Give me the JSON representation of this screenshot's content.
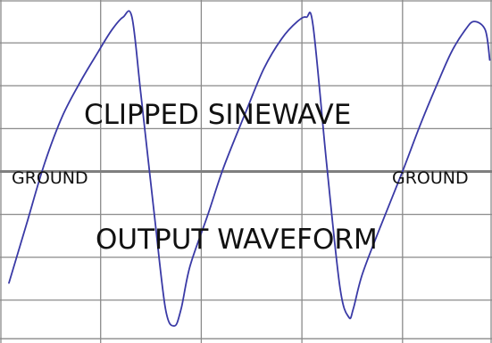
{
  "chart_data": {
    "type": "line",
    "grid": true,
    "xlim": [
      0,
      11
    ],
    "ylim": [
      -4,
      4
    ],
    "x_gridlines": [
      0,
      2.25,
      4.5,
      6.75,
      9,
      11
    ],
    "y_gridlines": [
      -3.9,
      -3,
      -2,
      -1,
      0,
      1,
      2,
      3,
      4
    ],
    "series": [
      {
        "color": "#3a3aa6",
        "x": [
          0.2,
          0.6,
          1.0,
          1.4,
          1.8,
          2.2,
          2.5,
          2.75,
          2.95,
          3.15,
          3.45,
          3.7,
          3.9,
          4.05,
          4.25,
          4.65,
          5.0,
          5.5,
          5.9,
          6.3,
          6.65,
          6.85,
          7.0,
          7.3,
          7.6,
          7.8,
          7.9,
          8.1,
          8.5,
          9.0,
          9.4,
          9.8,
          10.1,
          10.4,
          10.6,
          10.85,
          10.95
        ],
        "y": [
          -2.6,
          -1.2,
          0.2,
          1.3,
          2.1,
          2.8,
          3.3,
          3.6,
          3.6,
          1.8,
          -1.0,
          -3.2,
          -3.6,
          -3.2,
          -2.2,
          -1.0,
          0.1,
          1.4,
          2.4,
          3.1,
          3.5,
          3.6,
          3.4,
          0.2,
          -2.7,
          -3.4,
          -3.2,
          -2.4,
          -1.3,
          0.0,
          1.1,
          2.1,
          2.8,
          3.3,
          3.5,
          3.3,
          2.6
        ]
      }
    ],
    "annotations": {
      "title_top": "CLIPPED SINEWAVE",
      "ground_left": "GROUND",
      "ground_right": "GROUND",
      "title_bottom": "OUTPUT WAVEFORM"
    },
    "reference_line": {
      "y": 0,
      "color": "#7f7f7f"
    }
  }
}
